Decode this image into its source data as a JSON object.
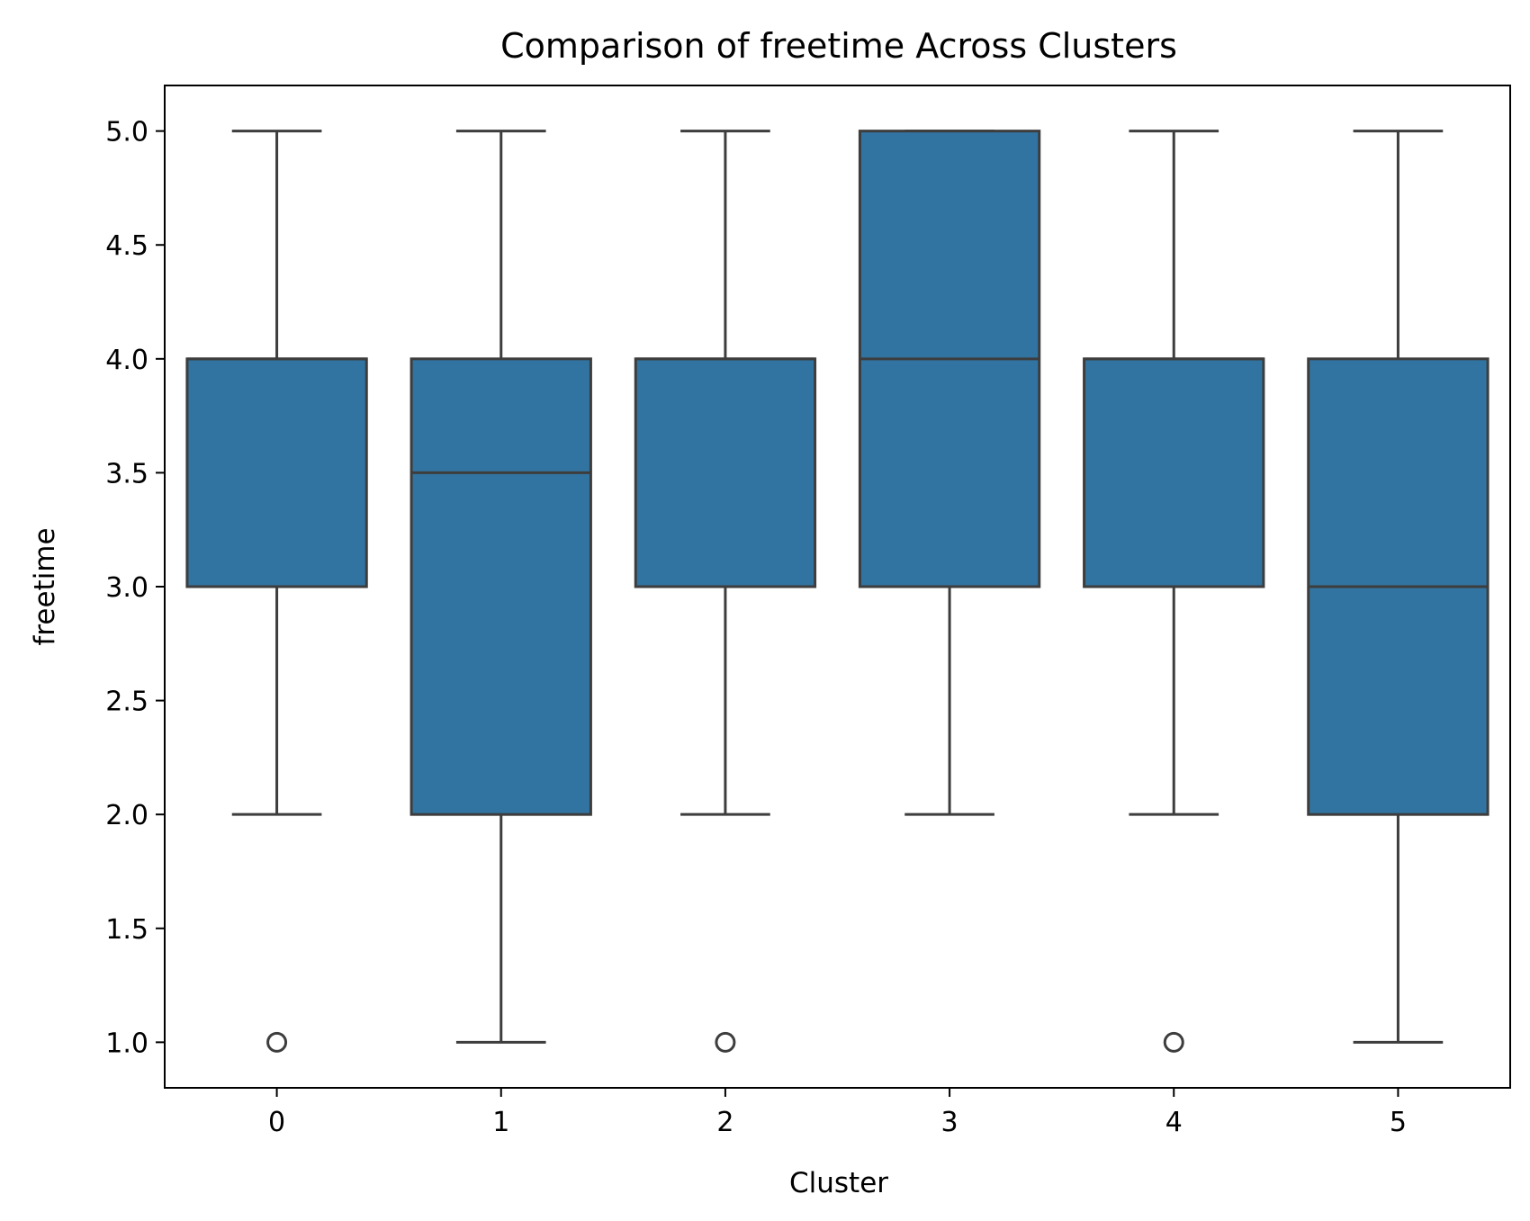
{
  "chart_data": {
    "type": "boxplot",
    "title": "Comparison of freetime Across Clusters",
    "xlabel": "Cluster",
    "ylabel": "freetime",
    "categories": [
      "0",
      "1",
      "2",
      "3",
      "4",
      "5"
    ],
    "ylim": [
      0.8,
      5.2
    ],
    "yticks": [
      "1.0",
      "1.5",
      "2.0",
      "2.5",
      "3.0",
      "3.5",
      "4.0",
      "4.5",
      "5.0"
    ],
    "grid": false,
    "colors": {
      "box": "#3274a1",
      "line": "#3d3d3d"
    },
    "boxes": [
      {
        "category": "0",
        "whisker_low": 2.0,
        "q1": 3.0,
        "median": 4.0,
        "q3": 4.0,
        "whisker_high": 5.0,
        "outliers": [
          1.0
        ]
      },
      {
        "category": "1",
        "whisker_low": 1.0,
        "q1": 2.0,
        "median": 3.5,
        "q3": 4.0,
        "whisker_high": 5.0,
        "outliers": []
      },
      {
        "category": "2",
        "whisker_low": 2.0,
        "q1": 3.0,
        "median": 4.0,
        "q3": 4.0,
        "whisker_high": 5.0,
        "outliers": [
          1.0
        ]
      },
      {
        "category": "3",
        "whisker_low": 2.0,
        "q1": 3.0,
        "median": 4.0,
        "q3": 5.0,
        "whisker_high": 5.0,
        "outliers": []
      },
      {
        "category": "4",
        "whisker_low": 2.0,
        "q1": 3.0,
        "median": 4.0,
        "q3": 4.0,
        "whisker_high": 5.0,
        "outliers": [
          1.0
        ]
      },
      {
        "category": "5",
        "whisker_low": 1.0,
        "q1": 2.0,
        "median": 3.0,
        "q3": 4.0,
        "whisker_high": 5.0,
        "outliers": []
      }
    ]
  }
}
